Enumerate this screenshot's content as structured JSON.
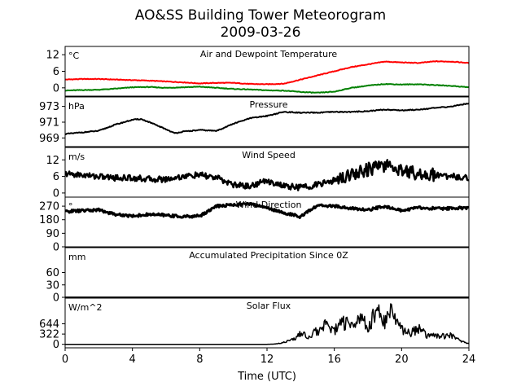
{
  "figure": {
    "title_line1": "AO&SS Building Tower Meteorogram",
    "title_line2": "2009-03-26",
    "xlabel": "Time (UTC)"
  },
  "chart_data": [
    {
      "type": "line",
      "title": "Air and Dewpoint Temperature",
      "unit": "°C",
      "xlim": [
        0,
        24
      ],
      "ylim": [
        -3,
        15
      ],
      "yticks": [
        "0",
        "6",
        "12"
      ],
      "yticks_values": [
        0,
        6,
        12
      ],
      "xticks": [
        "0",
        "4",
        "8",
        "12",
        "16",
        "20",
        "24"
      ],
      "series": [
        {
          "color": "#ff0000",
          "x": [
            0,
            1,
            2,
            3,
            4,
            5,
            6,
            7,
            8,
            9,
            10,
            11,
            12,
            13,
            14,
            15,
            16,
            17,
            18,
            19,
            20,
            21,
            22,
            23,
            24
          ],
          "y": [
            3.0,
            3.2,
            3.2,
            3.0,
            2.8,
            2.6,
            2.3,
            2.0,
            1.6,
            1.8,
            1.8,
            1.4,
            1.3,
            1.5,
            3.0,
            4.5,
            6.0,
            7.5,
            8.5,
            9.5,
            9.2,
            9.0,
            9.6,
            9.5,
            9.0
          ]
        },
        {
          "color": "#008000",
          "x": [
            0,
            1,
            2,
            3,
            4,
            5,
            6,
            7,
            8,
            9,
            10,
            11,
            12,
            13,
            14,
            15,
            16,
            17,
            18,
            19,
            20,
            21,
            22,
            23,
            24
          ],
          "y": [
            -1.0,
            -0.8,
            -0.7,
            -0.3,
            0.2,
            0.3,
            0.0,
            0.2,
            0.4,
            0.0,
            -0.4,
            -0.6,
            -0.9,
            -1.0,
            -1.5,
            -1.8,
            -1.4,
            0.0,
            0.8,
            1.4,
            1.2,
            1.3,
            1.0,
            0.7,
            0.2
          ]
        }
      ]
    },
    {
      "type": "line",
      "title": "Pressure",
      "unit": "hPa",
      "xlim": [
        0,
        24
      ],
      "ylim": [
        967.9,
        974.2
      ],
      "yticks": [
        "969",
        "971",
        "973"
      ],
      "yticks_values": [
        969,
        971,
        973
      ],
      "series": [
        {
          "color": "#000000",
          "x": [
            0,
            1,
            2,
            3,
            4,
            4.5,
            5,
            6,
            6.5,
            7,
            8,
            9,
            10,
            11,
            12,
            13,
            14,
            15,
            16,
            17,
            18,
            19,
            20,
            21,
            22,
            23,
            24
          ],
          "y": [
            969.5,
            969.7,
            969.9,
            970.7,
            971.3,
            971.4,
            971.0,
            970.1,
            969.6,
            969.8,
            970.0,
            969.9,
            970.8,
            971.5,
            971.8,
            972.3,
            972.2,
            972.2,
            972.3,
            972.3,
            972.4,
            972.6,
            972.5,
            972.6,
            972.8,
            973.0,
            973.4
          ]
        }
      ]
    },
    {
      "type": "line",
      "title": "Wind Speed",
      "unit": "m/s",
      "xlim": [
        0,
        24
      ],
      "ylim": [
        -1.5,
        16.5
      ],
      "yticks": [
        "0",
        "6",
        "12"
      ],
      "yticks_values": [
        0,
        6,
        12
      ],
      "series": [
        {
          "color": "#000000",
          "x": [
            0,
            1,
            2,
            3,
            4,
            5,
            6,
            7,
            8,
            9,
            10,
            11,
            12,
            13,
            14,
            15,
            16,
            17,
            18,
            19,
            20,
            21,
            22,
            23,
            24
          ],
          "y": [
            7.0,
            6.5,
            6.0,
            5.5,
            5.5,
            5.0,
            5.0,
            6.0,
            6.5,
            5.5,
            3.0,
            2.5,
            4.5,
            2.5,
            2.0,
            3.0,
            4.5,
            7.0,
            8.5,
            10.0,
            8.5,
            7.0,
            6.5,
            6.0,
            5.5
          ]
        }
      ]
    },
    {
      "type": "line",
      "title": "Wind Direction",
      "unit": "°",
      "xlim": [
        0,
        24
      ],
      "ylim": [
        0,
        330
      ],
      "yticks": [
        "0",
        "90",
        "180",
        "270"
      ],
      "yticks_values": [
        0,
        90,
        180,
        270
      ],
      "series": [
        {
          "color": "#000000",
          "x": [
            0,
            1,
            2,
            3,
            4,
            5,
            6,
            7,
            8,
            9,
            10,
            11,
            12,
            13,
            14,
            15,
            16,
            17,
            18,
            19,
            20,
            21,
            22,
            23,
            24
          ],
          "y": [
            235,
            240,
            245,
            215,
            205,
            215,
            210,
            200,
            205,
            270,
            280,
            285,
            260,
            225,
            200,
            275,
            270,
            255,
            245,
            270,
            240,
            260,
            255,
            255,
            260
          ]
        }
      ]
    },
    {
      "type": "line",
      "title": "Accumulated Precipitation Since 0Z",
      "unit": "mm",
      "xlim": [
        0,
        24
      ],
      "ylim": [
        0,
        120
      ],
      "yticks": [
        "0",
        "30",
        "60"
      ],
      "yticks_values": [
        0,
        30,
        60
      ],
      "series": [
        {
          "color": "#000000",
          "x": [
            0,
            24
          ],
          "y": [
            0,
            0
          ]
        }
      ]
    },
    {
      "type": "line",
      "title": "Solar Flux",
      "unit": "W/m^2",
      "xlim": [
        0,
        24
      ],
      "ylim": [
        -110,
        1450
      ],
      "yticks": [
        "0",
        "322",
        "644"
      ],
      "yticks_values": [
        0,
        322,
        644
      ],
      "series": [
        {
          "color": "#000000",
          "x": [
            0,
            4,
            8,
            12,
            12.5,
            13,
            13.5,
            14,
            14.5,
            15,
            15.5,
            16,
            16.5,
            17,
            17.5,
            18,
            18.5,
            19,
            19.5,
            20,
            20.5,
            21,
            21.5,
            22,
            22.5,
            23,
            23.5,
            24
          ],
          "y": [
            0,
            0,
            0,
            0,
            10,
            60,
            150,
            320,
            250,
            420,
            600,
            430,
            700,
            600,
            900,
            500,
            1050,
            700,
            1100,
            450,
            350,
            500,
            280,
            300,
            250,
            280,
            100,
            20
          ]
        }
      ]
    }
  ]
}
